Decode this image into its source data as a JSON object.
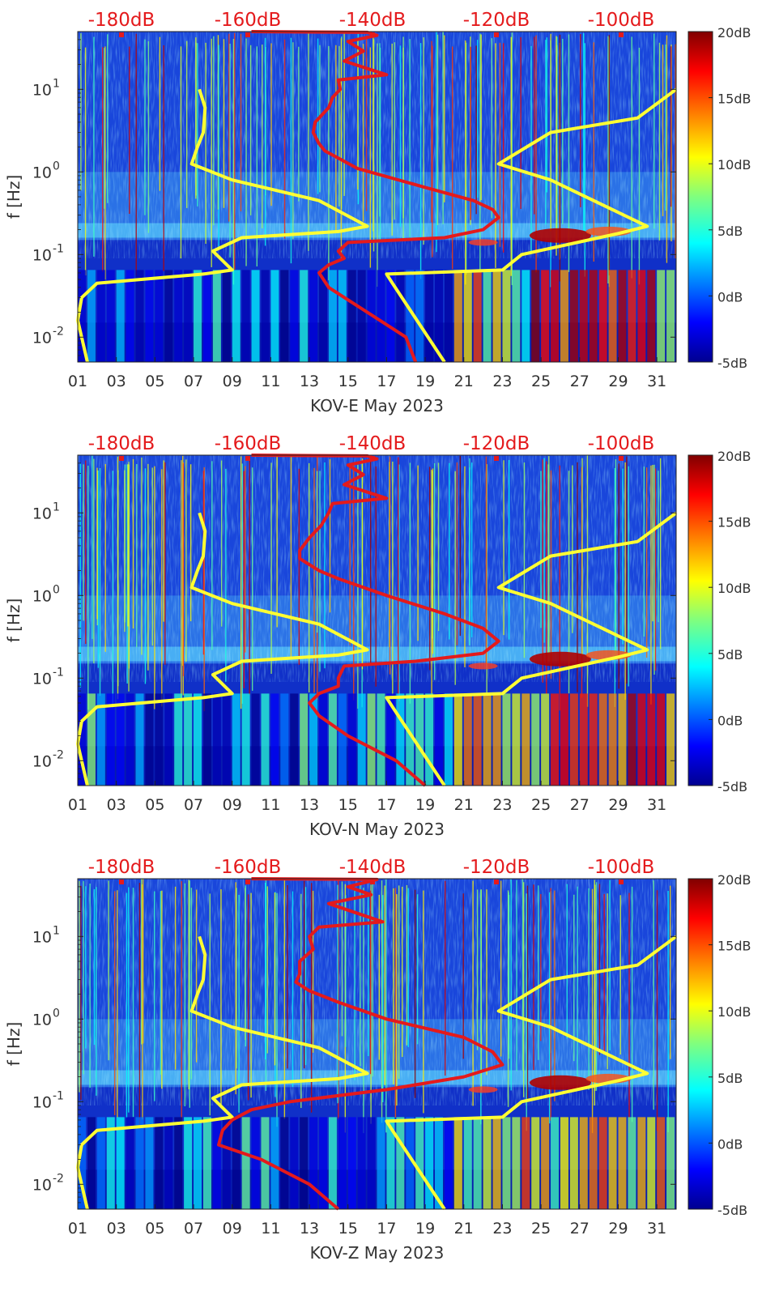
{
  "chart_data": [
    {
      "type": "heatmap",
      "xlabel": "KOV-E May 2023",
      "ylabel": "f [Hz]",
      "x_tick_labels": [
        "01",
        "03",
        "05",
        "07",
        "09",
        "11",
        "13",
        "15",
        "17",
        "19",
        "21",
        "23",
        "25",
        "27",
        "29",
        "31"
      ],
      "x_ticks": [
        1,
        3,
        5,
        7,
        9,
        11,
        13,
        15,
        17,
        19,
        21,
        23,
        25,
        27,
        29,
        31
      ],
      "xlim": [
        1,
        32
      ],
      "y_scale": "log",
      "ylim": [
        0.005,
        50
      ],
      "y_tick_labels": [
        {
          "base": "10",
          "exp": "1"
        },
        {
          "base": "10",
          "exp": "0"
        },
        {
          "base": "10",
          "exp": "-1"
        },
        {
          "base": "10",
          "exp": "-2"
        }
      ],
      "top_db_labels": [
        "-180dB",
        "-160dB",
        "-140dB",
        "-120dB",
        "-100dB"
      ],
      "colorbar": {
        "labels": [
          "20dB",
          "15dB",
          "10dB",
          "5dB",
          "0dB",
          "-5dB"
        ],
        "range": [
          -5,
          20
        ],
        "colormap": "jet"
      },
      "series": [
        {
          "color": "#ffff33",
          "points": [
            [
              7.3,
              10
            ],
            [
              7.6,
              6
            ],
            [
              7.5,
              3
            ],
            [
              7.2,
              2
            ],
            [
              6.9,
              1.25
            ],
            [
              9,
              0.8
            ],
            [
              13.5,
              0.45
            ],
            [
              16,
              0.22
            ],
            [
              14.5,
              0.19
            ],
            [
              9.5,
              0.16
            ],
            [
              8,
              0.11
            ],
            [
              9,
              0.065
            ],
            [
              7.5,
              0.058
            ],
            [
              2,
              0.045
            ],
            [
              1.2,
              0.03
            ],
            [
              1.0,
              0.016
            ],
            [
              1.5,
              0.005
            ]
          ]
        },
        {
          "color": "#ffff33",
          "points": [
            [
              32,
              10
            ],
            [
              30,
              4.5
            ],
            [
              25.5,
              3
            ],
            [
              22.8,
              1.25
            ],
            [
              25.5,
              0.8
            ],
            [
              30.5,
              0.22
            ],
            [
              29,
              0.18
            ],
            [
              24,
              0.1
            ],
            [
              23,
              0.065
            ],
            [
              17,
              0.058
            ],
            [
              17.3,
              0.045
            ],
            [
              20,
              0.005
            ]
          ]
        },
        {
          "color": "#e41a1c",
          "points": [
            [
              10,
              50
            ],
            [
              16,
              49
            ],
            [
              16.5,
              45
            ],
            [
              15,
              38
            ],
            [
              15.8,
              29
            ],
            [
              14.8,
              22
            ],
            [
              17,
              15
            ],
            [
              14.5,
              13
            ],
            [
              14.6,
              10
            ],
            [
              14.2,
              8
            ],
            [
              14,
              6
            ],
            [
              13.3,
              4
            ],
            [
              13.2,
              3
            ],
            [
              13.5,
              2.2
            ],
            [
              13.8,
              1.8
            ],
            [
              15.5,
              1.1
            ],
            [
              19,
              0.65
            ],
            [
              21.5,
              0.45
            ],
            [
              22.5,
              0.35
            ],
            [
              22.8,
              0.28
            ],
            [
              22,
              0.2
            ],
            [
              20,
              0.16
            ],
            [
              15,
              0.14
            ],
            [
              14.5,
              0.11
            ],
            [
              14.8,
              0.09
            ],
            [
              14,
              0.075
            ],
            [
              13.5,
              0.06
            ],
            [
              14,
              0.04
            ],
            [
              16,
              0.02
            ],
            [
              18,
              0.01
            ],
            [
              18.5,
              0.005
            ]
          ]
        }
      ]
    },
    {
      "type": "heatmap",
      "xlabel": "KOV-N May 2023",
      "ylabel": "f [Hz]",
      "x_tick_labels": [
        "01",
        "03",
        "05",
        "07",
        "09",
        "11",
        "13",
        "15",
        "17",
        "19",
        "21",
        "23",
        "25",
        "27",
        "29",
        "31"
      ],
      "x_ticks": [
        1,
        3,
        5,
        7,
        9,
        11,
        13,
        15,
        17,
        19,
        21,
        23,
        25,
        27,
        29,
        31
      ],
      "xlim": [
        1,
        32
      ],
      "y_scale": "log",
      "ylim": [
        0.005,
        50
      ],
      "y_tick_labels": [
        {
          "base": "10",
          "exp": "1"
        },
        {
          "base": "10",
          "exp": "0"
        },
        {
          "base": "10",
          "exp": "-1"
        },
        {
          "base": "10",
          "exp": "-2"
        }
      ],
      "top_db_labels": [
        "-180dB",
        "-160dB",
        "-140dB",
        "-120dB",
        "-100dB"
      ],
      "colorbar": {
        "labels": [
          "20dB",
          "15dB",
          "10dB",
          "5dB",
          "0dB",
          "-5dB"
        ],
        "range": [
          -5,
          20
        ],
        "colormap": "jet"
      },
      "series": [
        {
          "color": "#ffff33",
          "points": [
            [
              7.3,
              10
            ],
            [
              7.6,
              6
            ],
            [
              7.5,
              3
            ],
            [
              7.2,
              2
            ],
            [
              6.9,
              1.25
            ],
            [
              9,
              0.8
            ],
            [
              13.5,
              0.45
            ],
            [
              16,
              0.22
            ],
            [
              14.5,
              0.19
            ],
            [
              9.5,
              0.16
            ],
            [
              8,
              0.11
            ],
            [
              9,
              0.065
            ],
            [
              7.5,
              0.058
            ],
            [
              2,
              0.045
            ],
            [
              1.2,
              0.03
            ],
            [
              1.0,
              0.016
            ],
            [
              1.5,
              0.005
            ]
          ]
        },
        {
          "color": "#ffff33",
          "points": [
            [
              32,
              10
            ],
            [
              30,
              4.5
            ],
            [
              25.5,
              3
            ],
            [
              22.8,
              1.25
            ],
            [
              25.5,
              0.8
            ],
            [
              30.5,
              0.22
            ],
            [
              29,
              0.18
            ],
            [
              24,
              0.1
            ],
            [
              23,
              0.065
            ],
            [
              17,
              0.058
            ],
            [
              17.3,
              0.045
            ],
            [
              20,
              0.005
            ]
          ]
        },
        {
          "color": "#e41a1c",
          "points": [
            [
              10,
              50
            ],
            [
              16,
              49
            ],
            [
              16.5,
              45
            ],
            [
              15,
              38
            ],
            [
              15.8,
              29
            ],
            [
              14.8,
              22
            ],
            [
              17,
              15
            ],
            [
              14.2,
              13
            ],
            [
              14,
              10
            ],
            [
              13.6,
              7
            ],
            [
              13,
              5
            ],
            [
              12.5,
              3.5
            ],
            [
              12.5,
              2.8
            ],
            [
              13.5,
              2
            ],
            [
              14.5,
              1.6
            ],
            [
              17,
              1.0
            ],
            [
              20,
              0.6
            ],
            [
              22,
              0.4
            ],
            [
              22.8,
              0.28
            ],
            [
              22,
              0.2
            ],
            [
              18.5,
              0.16
            ],
            [
              14.8,
              0.14
            ],
            [
              14.5,
              0.1
            ],
            [
              14.5,
              0.08
            ],
            [
              13.5,
              0.065
            ],
            [
              13,
              0.05
            ],
            [
              13.5,
              0.035
            ],
            [
              15,
              0.02
            ],
            [
              17.5,
              0.01
            ],
            [
              19,
              0.005
            ]
          ]
        }
      ]
    },
    {
      "type": "heatmap",
      "xlabel": "KOV-Z May 2023",
      "ylabel": "f [Hz]",
      "x_tick_labels": [
        "01",
        "03",
        "05",
        "07",
        "09",
        "11",
        "13",
        "15",
        "17",
        "19",
        "21",
        "23",
        "25",
        "27",
        "29",
        "31"
      ],
      "x_ticks": [
        1,
        3,
        5,
        7,
        9,
        11,
        13,
        15,
        17,
        19,
        21,
        23,
        25,
        27,
        29,
        31
      ],
      "xlim": [
        1,
        32
      ],
      "y_scale": "log",
      "ylim": [
        0.005,
        50
      ],
      "y_tick_labels": [
        {
          "base": "10",
          "exp": "1"
        },
        {
          "base": "10",
          "exp": "0"
        },
        {
          "base": "10",
          "exp": "-1"
        },
        {
          "base": "10",
          "exp": "-2"
        }
      ],
      "top_db_labels": [
        "-180dB",
        "-160dB",
        "-140dB",
        "-120dB",
        "-100dB"
      ],
      "colorbar": {
        "labels": [
          "20dB",
          "15dB",
          "10dB",
          "5dB",
          "0dB",
          "-5dB"
        ],
        "range": [
          -5,
          20
        ],
        "colormap": "jet"
      },
      "series": [
        {
          "color": "#ffff33",
          "points": [
            [
              7.3,
              10
            ],
            [
              7.6,
              6
            ],
            [
              7.5,
              3
            ],
            [
              7.2,
              2
            ],
            [
              6.9,
              1.25
            ],
            [
              9,
              0.8
            ],
            [
              13.5,
              0.45
            ],
            [
              16,
              0.22
            ],
            [
              14.5,
              0.19
            ],
            [
              9.5,
              0.16
            ],
            [
              8,
              0.11
            ],
            [
              9,
              0.065
            ],
            [
              7.5,
              0.058
            ],
            [
              2,
              0.045
            ],
            [
              1.2,
              0.03
            ],
            [
              1.0,
              0.016
            ],
            [
              1.5,
              0.005
            ]
          ]
        },
        {
          "color": "#ffff33",
          "points": [
            [
              32,
              10
            ],
            [
              30,
              4.5
            ],
            [
              25.5,
              3
            ],
            [
              22.8,
              1.25
            ],
            [
              25.5,
              0.8
            ],
            [
              30.5,
              0.22
            ],
            [
              29,
              0.18
            ],
            [
              24,
              0.1
            ],
            [
              23,
              0.065
            ],
            [
              17,
              0.058
            ],
            [
              17.3,
              0.045
            ],
            [
              20,
              0.005
            ]
          ]
        },
        {
          "color": "#e41a1c",
          "points": [
            [
              10,
              50
            ],
            [
              16.5,
              49
            ],
            [
              15,
              40
            ],
            [
              16.2,
              32
            ],
            [
              14,
              25
            ],
            [
              16.8,
              15
            ],
            [
              13.5,
              13
            ],
            [
              13,
              10
            ],
            [
              13.2,
              7
            ],
            [
              12.5,
              5
            ],
            [
              12.5,
              3.5
            ],
            [
              12.3,
              2.8
            ],
            [
              13,
              2.2
            ],
            [
              14.5,
              1.6
            ],
            [
              17,
              1.0
            ],
            [
              21,
              0.6
            ],
            [
              22.5,
              0.4
            ],
            [
              23,
              0.28
            ],
            [
              21,
              0.2
            ],
            [
              17,
              0.14
            ],
            [
              12,
              0.1
            ],
            [
              10,
              0.08
            ],
            [
              9,
              0.06
            ],
            [
              8.5,
              0.045
            ],
            [
              8.3,
              0.03
            ],
            [
              10.5,
              0.02
            ],
            [
              13,
              0.01
            ],
            [
              14.5,
              0.005
            ]
          ]
        }
      ]
    }
  ]
}
